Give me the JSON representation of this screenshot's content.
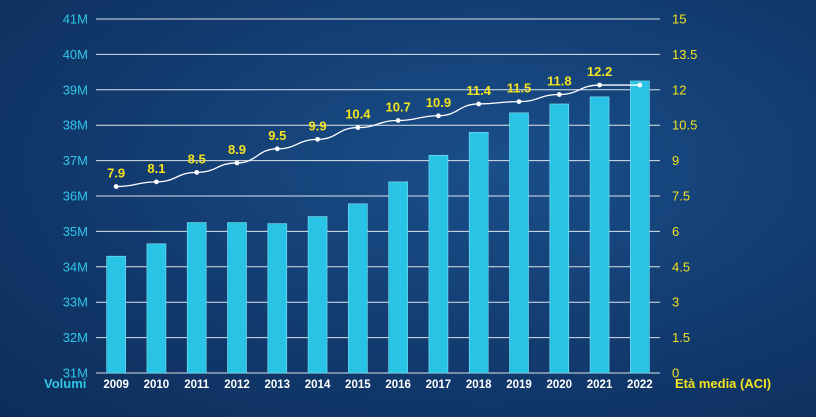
{
  "chart_data": {
    "type": "bar",
    "categories": [
      "2009",
      "2010",
      "2011",
      "2012",
      "2013",
      "2014",
      "2015",
      "2016",
      "2017",
      "2018",
      "2019",
      "2020",
      "2021",
      "2022"
    ],
    "series": [
      {
        "name": "Volumi",
        "type": "bar",
        "axis": "left",
        "values": [
          34.3,
          34.65,
          35.25,
          35.25,
          35.22,
          35.42,
          35.78,
          36.4,
          37.15,
          37.8,
          38.35,
          38.6,
          38.8,
          39.25
        ]
      },
      {
        "name": "Età media (ACI)",
        "type": "line",
        "axis": "right",
        "values": [
          7.9,
          8.1,
          8.5,
          8.9,
          9.5,
          9.9,
          10.4,
          10.7,
          10.9,
          11.4,
          11.5,
          11.8,
          12.2,
          12.2
        ],
        "data_labels": [
          "7.9",
          "8.1",
          "8.5",
          "8.9",
          "9.5",
          "9.9",
          "10.4",
          "10.7",
          "10.9",
          "11.4",
          "11.5",
          "11.8",
          "12.2",
          ""
        ]
      }
    ],
    "ylabel": "Volumi",
    "y2label": "Età media (ACI)",
    "ylim": [
      31,
      41
    ],
    "y2lim": [
      0,
      15
    ],
    "yticks": [
      "31M",
      "32M",
      "33M",
      "34M",
      "35M",
      "36M",
      "37M",
      "38M",
      "39M",
      "40M",
      "41M"
    ],
    "yticks_values": [
      31,
      32,
      33,
      34,
      35,
      36,
      37,
      38,
      39,
      40,
      41
    ],
    "y2ticks": [
      "0",
      "1.5",
      "3",
      "4.5",
      "6",
      "7.5",
      "9",
      "10.5",
      "12",
      "13.5",
      "15"
    ],
    "y2ticks_values": [
      0,
      1.5,
      3,
      4.5,
      6,
      7.5,
      9,
      10.5,
      12,
      13.5,
      15
    ],
    "grid": true,
    "colors": {
      "bar": "#29c3e6",
      "bar_edge": "#7fe0f5",
      "line": "#ffffff",
      "left_axis": "#2fc6e8",
      "right_axis": "#f2e21f",
      "grid": "#ffffff",
      "x_tick": "#ffffff"
    }
  }
}
